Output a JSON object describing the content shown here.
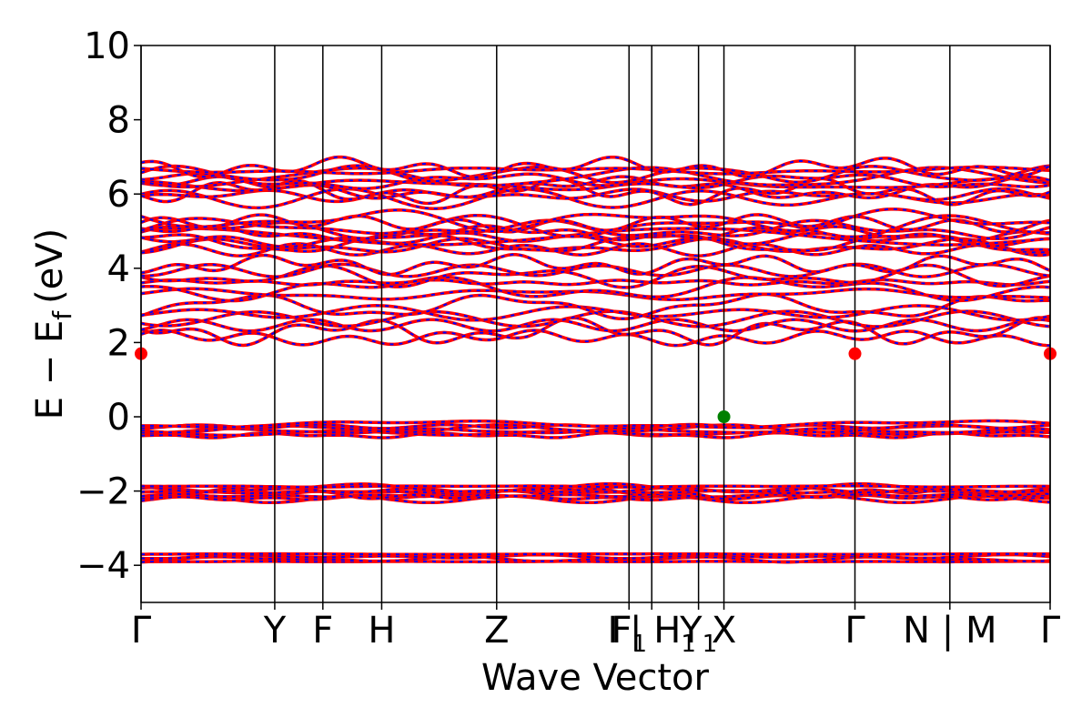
{
  "chart_data": {
    "type": "line",
    "title": "",
    "xlabel": "Wave Vector",
    "ylabel": "E − E",
    "ylabel_subscript": "f",
    "ylabel_unit": "(eV)",
    "ylim": [
      -5,
      10
    ],
    "yticks": [
      -4,
      -2,
      0,
      2,
      4,
      6,
      8,
      10
    ],
    "ytick_labels": [
      "−4",
      "−2",
      "0",
      "2",
      "4",
      "6",
      "8",
      "10"
    ],
    "xlim": [
      0,
      6.8
    ],
    "kpoints": [
      {
        "x": 0.0,
        "label": "Γ"
      },
      {
        "x": 1.0,
        "label": "Y"
      },
      {
        "x": 1.36,
        "label": "F"
      },
      {
        "x": 1.8,
        "label": "H"
      },
      {
        "x": 2.66,
        "label": "Z"
      },
      {
        "x": 3.65,
        "label": "F",
        "sub": "1"
      },
      {
        "x": 3.82,
        "label": "I | H",
        "sub": "1"
      },
      {
        "x": 4.17,
        "label": "Y",
        "sub": "1"
      },
      {
        "x": 4.36,
        "label": "X"
      },
      {
        "x": 5.34,
        "label": "Γ"
      },
      {
        "x": 6.05,
        "label": "N | M"
      },
      {
        "x": 6.8,
        "label": "Γ"
      }
    ],
    "vbm": {
      "x": 4.36,
      "y": 0.0,
      "color": "#008000"
    },
    "cbm": [
      {
        "x": 0.0,
        "y": 1.7
      },
      {
        "x": 5.34,
        "y": 1.7
      },
      {
        "x": 6.8,
        "y": 1.7
      }
    ],
    "series": [
      {
        "color": "#ff0000",
        "style": "solid"
      },
      {
        "color": "#0000ff",
        "style": "dashed"
      }
    ],
    "band_groups": [
      {
        "base": -3.8,
        "spread": 0.2,
        "count": 4
      },
      {
        "base": -2.05,
        "spread": 0.35,
        "count": 8
      },
      {
        "base": -0.35,
        "spread": 0.3,
        "count": 6
      },
      {
        "base": 2.55,
        "spread": 0.85,
        "count": 6,
        "min": 1.7
      },
      {
        "base": 3.7,
        "spread": 0.8,
        "count": 6
      },
      {
        "base": 4.9,
        "spread": 0.8,
        "count": 10
      },
      {
        "base": 6.3,
        "spread": 0.85,
        "count": 10
      }
    ]
  }
}
